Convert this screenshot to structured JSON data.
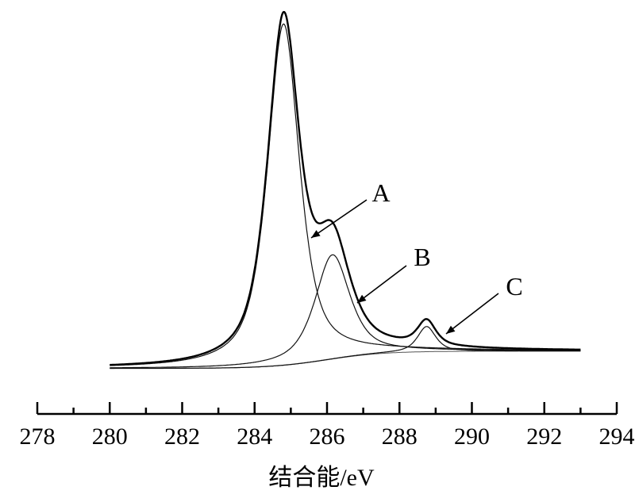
{
  "chart_data": {
    "type": "line",
    "title": "",
    "xlabel": "结合能/eV",
    "ylabel": "",
    "xlim": [
      278,
      294
    ],
    "ylim": [
      0,
      100
    ],
    "x_ticks": [
      "278",
      "280",
      "282",
      "284",
      "286",
      "288",
      "290",
      "292",
      "294"
    ],
    "x_range_data": [
      280,
      293
    ],
    "background": {
      "left": 1.2,
      "right": 6.0,
      "step_center": 286.0,
      "step_width": 0.8
    },
    "components": [
      {
        "name": "A",
        "center": 284.8,
        "height": 95,
        "fwhm": 1.05
      },
      {
        "name": "B",
        "center": 286.15,
        "height": 29,
        "fwhm": 1.15
      },
      {
        "name": "C",
        "center": 288.75,
        "height": 7,
        "fwhm": 0.6
      }
    ],
    "series": [
      {
        "name": "envelope",
        "description_key": "sum"
      },
      {
        "name": "A"
      },
      {
        "name": "B"
      },
      {
        "name": "C"
      },
      {
        "name": "background"
      }
    ],
    "annotations": [
      {
        "label": "A",
        "points_to_x": 285.7
      },
      {
        "label": "B",
        "points_to_x": 287.2
      },
      {
        "label": "C",
        "points_to_x": 289.5
      }
    ]
  }
}
